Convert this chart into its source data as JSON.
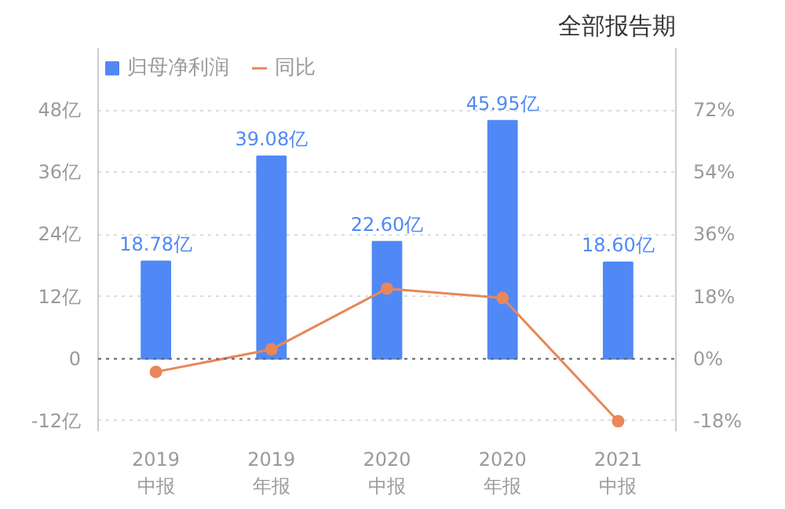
{
  "chart_data": {
    "type": "bar",
    "title": "全部报告期",
    "categories": [
      "2019\n中报",
      "2019\n年报",
      "2020\n中报",
      "2020\n年报",
      "2021\n中报"
    ],
    "series": [
      {
        "name": "归母净利润",
        "color": "#5089f5",
        "values": [
          18.78,
          39.08,
          22.6,
          45.95,
          18.6
        ],
        "value_labels": [
          "18.78亿",
          "39.08亿",
          "22.60亿",
          "45.95亿",
          "18.60亿"
        ]
      },
      {
        "name": "同比",
        "type": "line",
        "axis": "y2",
        "color": "#e8875a",
        "values": [
          -3.8,
          2.7,
          20.3,
          17.6,
          -18.1
        ]
      }
    ],
    "ylim": [
      -14,
      60
    ],
    "yticks": [
      {
        "value": -12,
        "label": "-12亿"
      },
      0,
      {
        "value": 12,
        "label": "12亿"
      },
      {
        "value": 24,
        "label": "24亿"
      },
      {
        "value": 36,
        "label": "36亿"
      },
      {
        "value": 48,
        "label": "48亿"
      }
    ],
    "y2lim": [
      -21,
      90
    ],
    "y2ticks": [
      {
        "value": -18,
        "label": "-18%"
      },
      {
        "value": 0,
        "label": "0%"
      },
      {
        "value": 18,
        "label": "18%"
      },
      {
        "value": 36,
        "label": "36%"
      },
      {
        "value": 54,
        "label": "54%"
      },
      {
        "value": 72,
        "label": "72%"
      }
    ],
    "ref_lines": [
      {
        "axis": "y",
        "value": 0,
        "color": "#666666",
        "line_style": "dotted"
      }
    ],
    "grid": "y",
    "legend": "top left",
    "marker": "circle",
    "line_style": "solid"
  }
}
